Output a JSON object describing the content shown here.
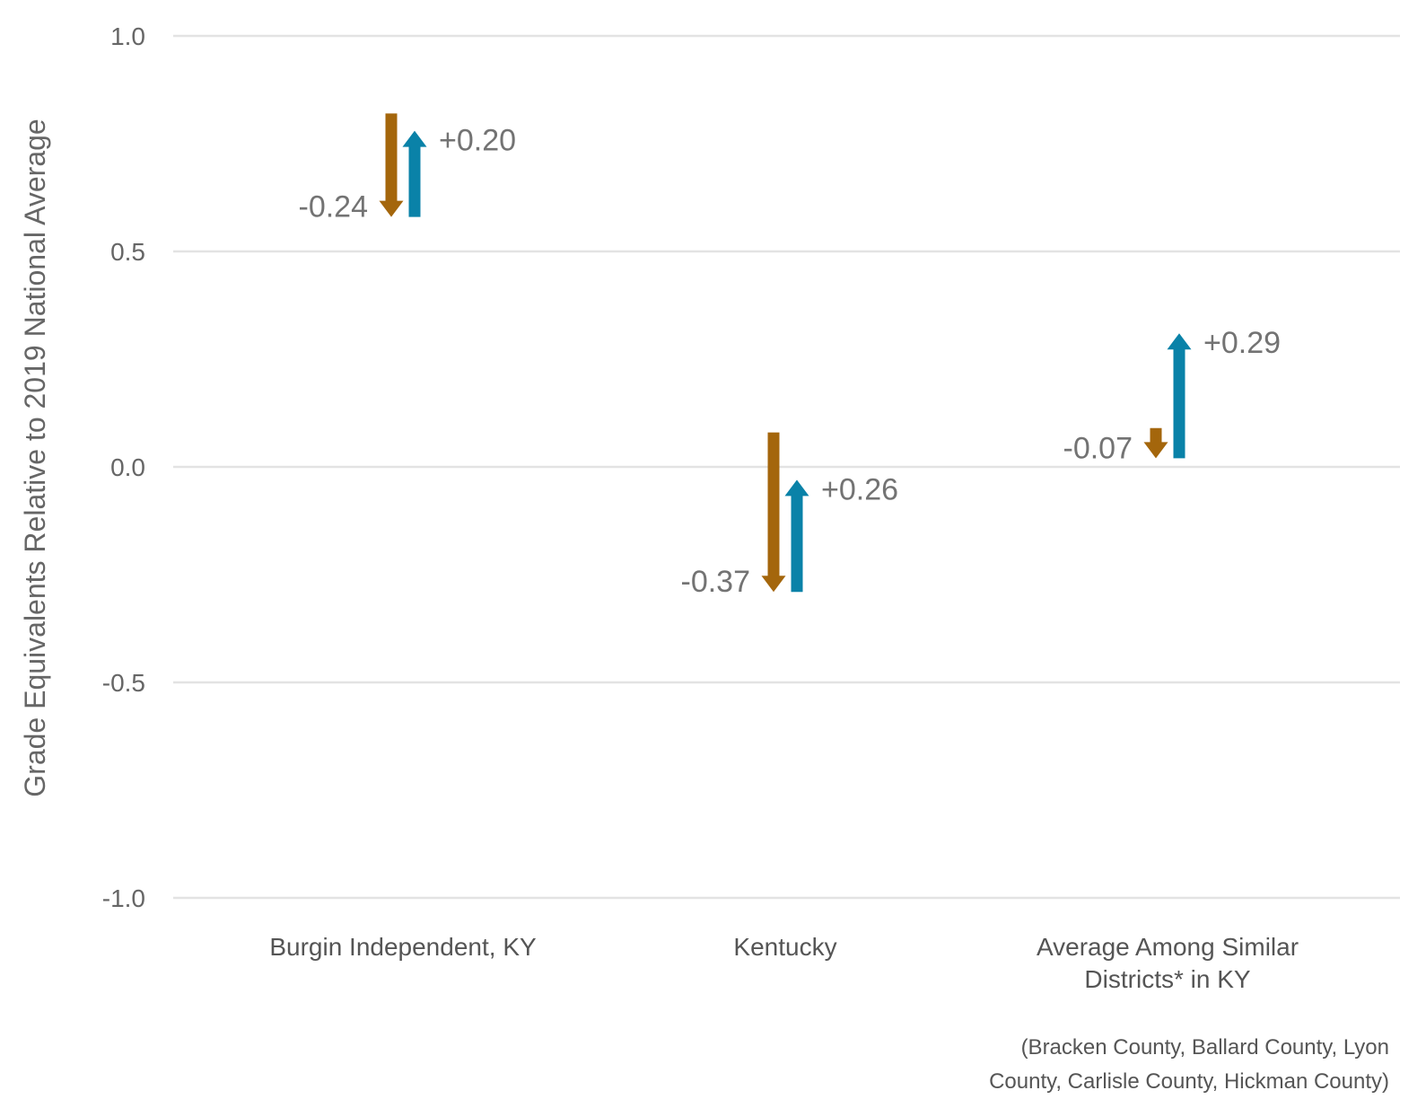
{
  "chart_data": {
    "type": "arrow",
    "ylabel": "Grade Equivalents Relative to 2019 National Average",
    "ylim": [
      -1.0,
      1.0
    ],
    "yticks": [
      1.0,
      0.5,
      0.0,
      -0.5,
      -1.0
    ],
    "ytick_labels": [
      "1.0",
      "0.5",
      "0.0",
      "-0.5",
      "-1.0"
    ],
    "grid": true,
    "colors": {
      "decline": "#A4660C",
      "recovery": "#0A82A8"
    },
    "categories": [
      {
        "label_lines": [
          "Burgin Independent, KY"
        ],
        "decline": {
          "from": 0.82,
          "to": 0.58,
          "label": "-0.24"
        },
        "recovery": {
          "from": 0.58,
          "to": 0.78,
          "label": "+0.20"
        }
      },
      {
        "label_lines": [
          "Kentucky"
        ],
        "decline": {
          "from": 0.08,
          "to": -0.29,
          "label": "-0.37"
        },
        "recovery": {
          "from": -0.29,
          "to": -0.03,
          "label": "+0.26"
        }
      },
      {
        "label_lines": [
          "Average Among Similar",
          "Districts* in KY"
        ],
        "decline": {
          "from": 0.09,
          "to": 0.02,
          "label": "-0.07"
        },
        "recovery": {
          "from": 0.02,
          "to": 0.31,
          "label": "+0.29"
        }
      }
    ],
    "footnote_lines": [
      "(Bracken County, Ballard County, Lyon",
      "County, Carlisle County, Hickman County)"
    ]
  }
}
